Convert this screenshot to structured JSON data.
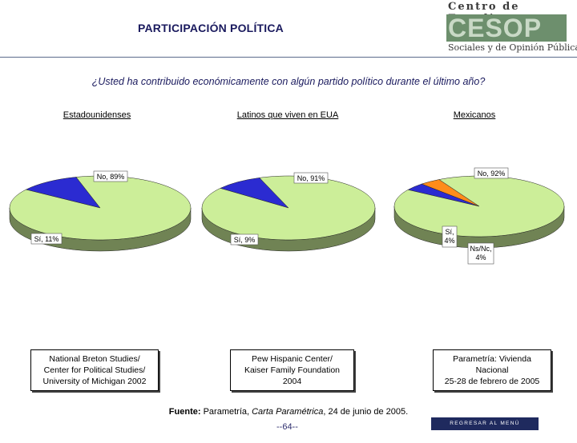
{
  "header": {
    "title": "PARTICIPACIÓN POLÍTICA",
    "logo_top": "Centro de Estudios",
    "logo_mark": "CESOP",
    "logo_bottom": "Sociales y de Opinión Pública"
  },
  "question": "¿Usted ha contribuido económicamente con algún partido político durante el último año?",
  "chart_data": [
    {
      "type": "pie",
      "title": "Estadounidenses",
      "slices": [
        {
          "label": "No, 89%",
          "value": 89,
          "color": "#ccee99"
        },
        {
          "label": "Sí, 11%",
          "value": 11,
          "color": "#2b2bd1"
        }
      ],
      "source": [
        "National Breton Studies/",
        "Center for Political Studies/",
        "University of Michigan 2002"
      ]
    },
    {
      "type": "pie",
      "title": "Latinos que viven en EUA",
      "slices": [
        {
          "label": "No, 91%",
          "value": 91,
          "color": "#ccee99"
        },
        {
          "label": "Sí, 9%",
          "value": 9,
          "color": "#2b2bd1"
        }
      ],
      "source": [
        "Pew Hispanic Center/",
        "Kaiser Family Foundation",
        "2004"
      ]
    },
    {
      "type": "pie",
      "title": "Mexicanos",
      "slices": [
        {
          "label": "No, 92%",
          "value": 92,
          "color": "#ccee99"
        },
        {
          "label": "Sí, 4%",
          "value": 4,
          "color": "#2b2bd1"
        },
        {
          "label": "Ns/Nc, 4%",
          "value": 4,
          "color": "#ff8c1a"
        }
      ],
      "source": [
        "Parametría: Vivienda",
        "Nacional",
        "25-28 de febrero de 2005"
      ]
    }
  ],
  "footer": {
    "label": "Fuente:",
    "text_pre": " Parametría, ",
    "text_italic": "Carta Paramétrica",
    "text_post": ", 24 de junio de 2005.",
    "page": "--64--",
    "nav_button": "REGRESAR AL MENÚ PRINCIPAL"
  }
}
